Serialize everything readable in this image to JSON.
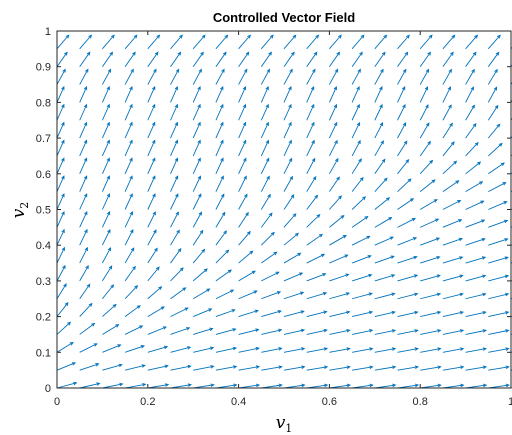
{
  "chart_data": {
    "type": "quiver",
    "title": "Controlled Vector Field",
    "xlabel": {
      "base": "v",
      "sub": "1"
    },
    "ylabel": {
      "base": "v",
      "sub": "2"
    },
    "xlim": [
      0,
      1
    ],
    "ylim": [
      0,
      1
    ],
    "xticks": [
      "0",
      "0.2",
      "0.4",
      "0.6",
      "0.8",
      "1"
    ],
    "yticks": [
      "0",
      "0.1",
      "0.2",
      "0.3",
      "0.4",
      "0.5",
      "0.6",
      "0.7",
      "0.8",
      "0.9",
      "1"
    ],
    "grid": false,
    "box": true,
    "arrow_color": "#0072BD",
    "grid_spacing": 0.05,
    "x_range": [
      0,
      1
    ],
    "y_range": [
      0,
      0.95
    ]
  }
}
